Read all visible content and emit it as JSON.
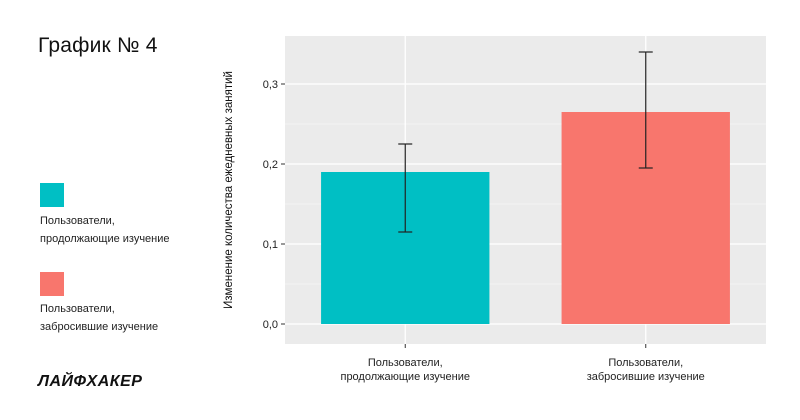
{
  "title": "График № 4",
  "brand": "ЛАЙФХАКЕР",
  "legend": [
    {
      "label": "Пользователи,\nпродолжающие изучение",
      "color": "#00BFC4"
    },
    {
      "label": "Пользователи,\nзабросившие изучение",
      "color": "#F8766D"
    }
  ],
  "chart_data": {
    "type": "bar",
    "ylabel": "Изменение количества ежедневных занятий",
    "categories": [
      "Пользователи,\nпродолжающие изучение",
      "Пользователи,\nзабросившие изучение"
    ],
    "values": [
      0.19,
      0.265
    ],
    "errors": [
      [
        0.115,
        0.225
      ],
      [
        0.195,
        0.34
      ]
    ],
    "colors": [
      "#00BFC4",
      "#F8766D"
    ],
    "ylim": [
      -0.025,
      0.36
    ],
    "yticks": [
      0.0,
      0.1,
      0.2,
      0.3
    ],
    "ytick_labels": [
      "0,0",
      "0,1",
      "0,2",
      "0,3"
    ],
    "grid": true
  }
}
